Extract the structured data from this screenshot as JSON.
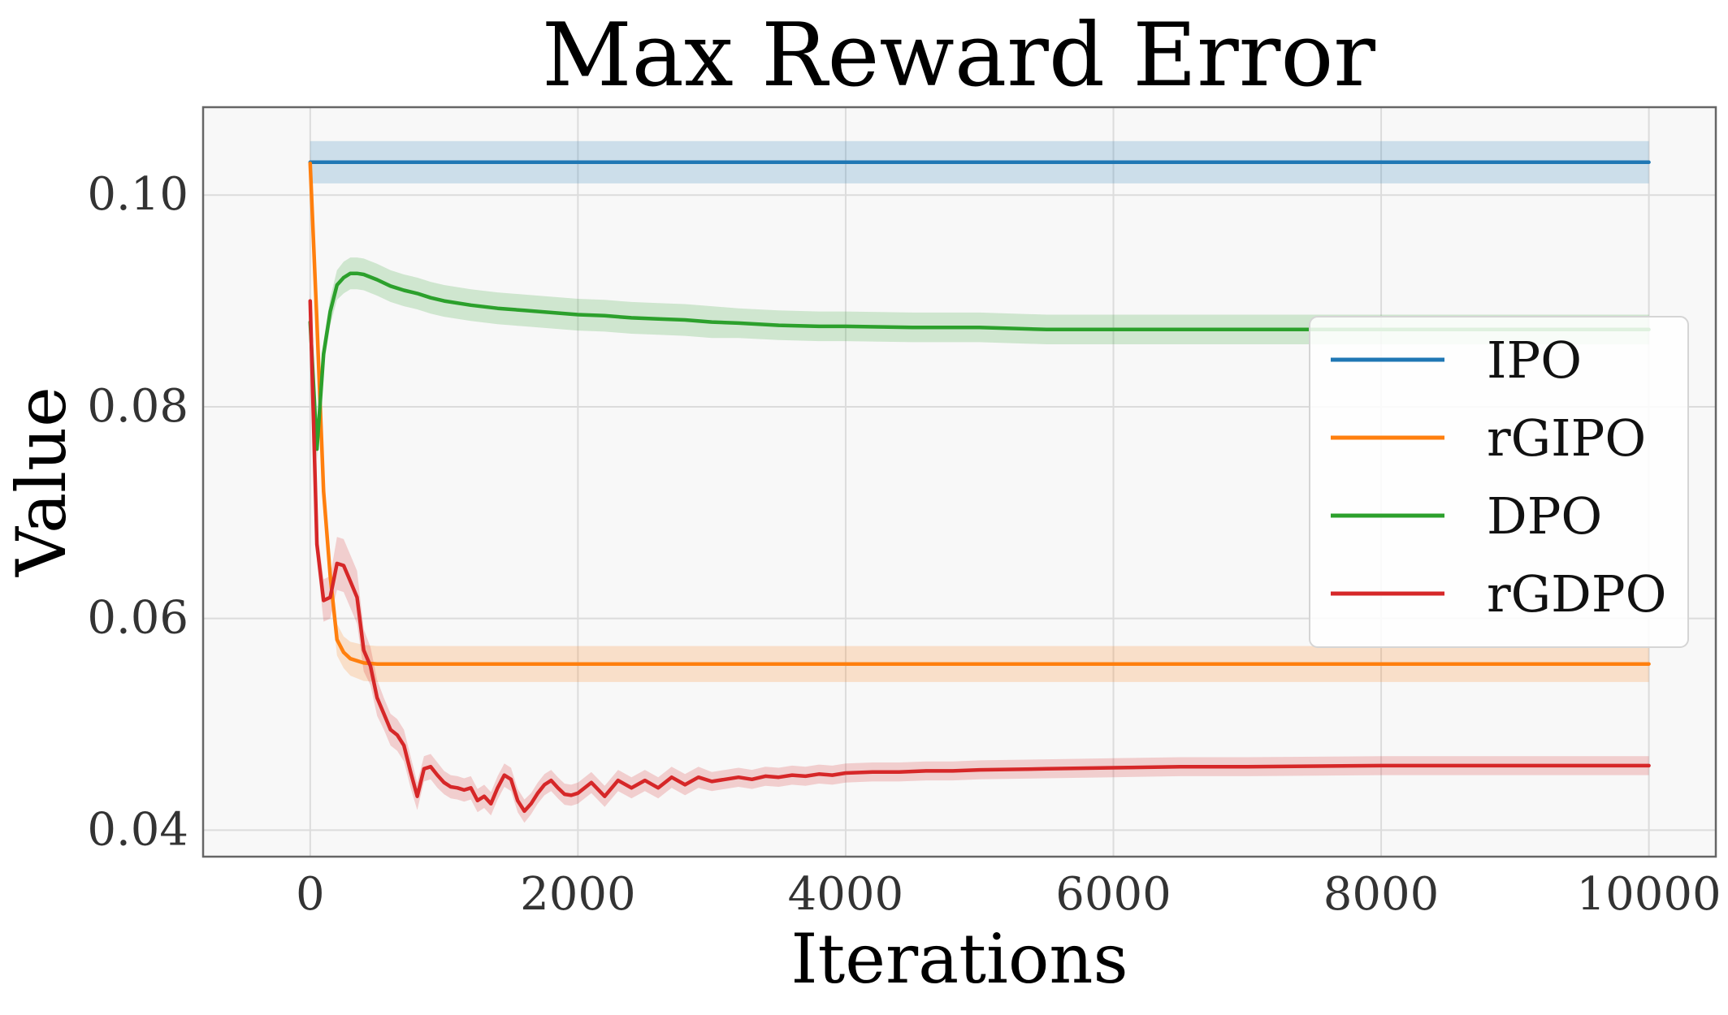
{
  "chart_data": {
    "type": "line",
    "title": "Max Reward Error",
    "xlabel": "Iterations",
    "ylabel": "Value",
    "xlim": [
      -800,
      10500
    ],
    "ylim": [
      0.0375,
      0.1083
    ],
    "xticks": [
      0,
      2000,
      4000,
      6000,
      8000,
      10000
    ],
    "xtick_labels": [
      "0",
      "2000",
      "4000",
      "6000",
      "8000",
      "10000"
    ],
    "yticks": [
      0.04,
      0.06,
      0.08,
      0.1
    ],
    "ytick_labels": [
      "0.04",
      "0.06",
      "0.08",
      "0.10"
    ],
    "grid": true,
    "legend_position": "center-right",
    "series": [
      {
        "name": "IPO",
        "color": "#1f77b4",
        "x": [
          0,
          10000
        ],
        "y": [
          0.1031,
          0.1031
        ],
        "band": [
          0.002,
          0.002
        ]
      },
      {
        "name": "rGIPO",
        "color": "#ff7f0e",
        "x": [
          0,
          50,
          100,
          150,
          200,
          250,
          300,
          400,
          500,
          700,
          1000,
          10000
        ],
        "y": [
          0.103,
          0.088,
          0.072,
          0.064,
          0.058,
          0.0568,
          0.0562,
          0.0558,
          0.0557,
          0.0557,
          0.0557,
          0.0557
        ],
        "band": [
          0.001,
          0.0015,
          0.0015,
          0.0015,
          0.0015,
          0.0015,
          0.0016,
          0.0017,
          0.0017,
          0.0017,
          0.0017,
          0.0017
        ]
      },
      {
        "name": "DPO",
        "color": "#2ca02c",
        "x": [
          0,
          50,
          100,
          150,
          200,
          250,
          300,
          350,
          400,
          500,
          600,
          700,
          800,
          900,
          1000,
          1200,
          1400,
          1600,
          1800,
          2000,
          2200,
          2400,
          2600,
          2800,
          3000,
          3200,
          3500,
          3800,
          4000,
          4500,
          4800,
          5000,
          5500,
          6000,
          6500,
          7000,
          8000,
          9000,
          10000
        ],
        "y": [
          0.088,
          0.076,
          0.085,
          0.089,
          0.0915,
          0.0922,
          0.0926,
          0.0926,
          0.0925,
          0.092,
          0.0914,
          0.091,
          0.0907,
          0.0903,
          0.09,
          0.0896,
          0.0893,
          0.0891,
          0.0889,
          0.0887,
          0.0886,
          0.0884,
          0.0883,
          0.0882,
          0.088,
          0.0879,
          0.0877,
          0.0876,
          0.0876,
          0.0875,
          0.0875,
          0.0875,
          0.0873,
          0.0873,
          0.0873,
          0.0873,
          0.0873,
          0.0873,
          0.0873
        ],
        "band": [
          0.001,
          0.001,
          0.0012,
          0.0013,
          0.0014,
          0.0015,
          0.0015,
          0.0015,
          0.0015,
          0.0015,
          0.0015,
          0.0015,
          0.0015,
          0.0015,
          0.0015,
          0.0015,
          0.0015,
          0.0015,
          0.0015,
          0.0015,
          0.0015,
          0.0015,
          0.0015,
          0.0015,
          0.0015,
          0.0014,
          0.0014,
          0.0014,
          0.0014,
          0.0014,
          0.0014,
          0.0014,
          0.0014,
          0.0014,
          0.0014,
          0.0014,
          0.0014,
          0.0014,
          0.0014
        ]
      },
      {
        "name": "rGDPO",
        "color": "#d62728",
        "x": [
          0,
          50,
          100,
          150,
          200,
          250,
          300,
          350,
          400,
          450,
          500,
          550,
          600,
          650,
          700,
          750,
          800,
          850,
          900,
          950,
          1000,
          1050,
          1100,
          1150,
          1200,
          1250,
          1300,
          1350,
          1400,
          1450,
          1500,
          1550,
          1600,
          1650,
          1700,
          1750,
          1800,
          1850,
          1900,
          1950,
          2000,
          2100,
          2200,
          2300,
          2400,
          2500,
          2600,
          2700,
          2800,
          2900,
          3000,
          3100,
          3200,
          3300,
          3400,
          3500,
          3600,
          3700,
          3800,
          3900,
          4000,
          4200,
          4400,
          4600,
          4800,
          5000,
          5500,
          6000,
          6500,
          7000,
          8000,
          9000,
          10000
        ],
        "y": [
          0.09,
          0.067,
          0.0617,
          0.062,
          0.0652,
          0.065,
          0.0635,
          0.062,
          0.057,
          0.0555,
          0.0525,
          0.051,
          0.0495,
          0.049,
          0.048,
          0.0455,
          0.0432,
          0.0458,
          0.046,
          0.0452,
          0.0445,
          0.0441,
          0.044,
          0.0438,
          0.044,
          0.0428,
          0.0432,
          0.0425,
          0.044,
          0.0452,
          0.0448,
          0.0428,
          0.0418,
          0.0425,
          0.0435,
          0.0443,
          0.0447,
          0.044,
          0.0434,
          0.0433,
          0.0435,
          0.0445,
          0.0432,
          0.0447,
          0.044,
          0.0447,
          0.044,
          0.045,
          0.0443,
          0.045,
          0.0446,
          0.0448,
          0.045,
          0.0448,
          0.0451,
          0.045,
          0.0452,
          0.0451,
          0.0453,
          0.0452,
          0.0454,
          0.0455,
          0.0455,
          0.0456,
          0.0456,
          0.0457,
          0.0458,
          0.0459,
          0.046,
          0.046,
          0.0461,
          0.0461,
          0.0461
        ],
        "band": [
          0.001,
          0.0015,
          0.002,
          0.002,
          0.0025,
          0.0025,
          0.0025,
          0.0025,
          0.002,
          0.0018,
          0.0017,
          0.0015,
          0.0015,
          0.0015,
          0.0015,
          0.0015,
          0.0013,
          0.0012,
          0.0012,
          0.0012,
          0.0011,
          0.0011,
          0.0011,
          0.0011,
          0.0011,
          0.0011,
          0.0011,
          0.0011,
          0.0011,
          0.0011,
          0.0011,
          0.0011,
          0.0011,
          0.001,
          0.001,
          0.001,
          0.001,
          0.001,
          0.001,
          0.001,
          0.001,
          0.001,
          0.001,
          0.001,
          0.001,
          0.001,
          0.001,
          0.001,
          0.001,
          0.001,
          0.0009,
          0.0009,
          0.0009,
          0.0009,
          0.0009,
          0.0009,
          0.0009,
          0.0009,
          0.0009,
          0.0009,
          0.0009,
          0.0009,
          0.0009,
          0.0009,
          0.0009,
          0.0009,
          0.0009,
          0.0009,
          0.0009,
          0.0009,
          0.0009,
          0.0009,
          0.0009
        ]
      }
    ]
  }
}
